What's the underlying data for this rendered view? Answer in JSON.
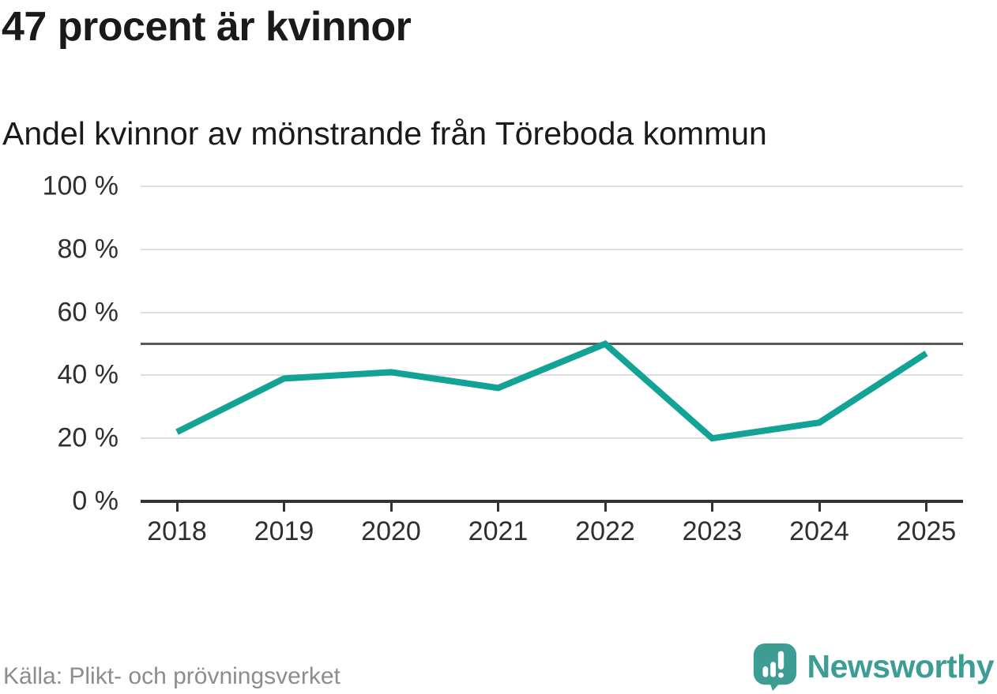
{
  "chart_data": {
    "type": "line",
    "title": "47 procent är kvinnor",
    "subtitle": "Andel kvinnor av mönstrande från Töreboda kommun",
    "categories": [
      "2018",
      "2019",
      "2020",
      "2021",
      "2022",
      "2023",
      "2024",
      "2025"
    ],
    "series": [
      {
        "name": "Andel kvinnor av mönstrande",
        "values": [
          22,
          39,
          41,
          36,
          50,
          20,
          25,
          47
        ]
      }
    ],
    "unit": "%",
    "ylim": [
      0,
      100
    ],
    "yticks": [
      0,
      20,
      40,
      60,
      80,
      100
    ],
    "ytick_labels": [
      "0 %",
      "20 %",
      "40 %",
      "60 %",
      "80 %",
      "100 %"
    ],
    "reference_line_y": 50,
    "grid": "horizontal",
    "legend": "none",
    "line_color": "#12a296"
  },
  "footer": {
    "source": "Källa: Plikt- och prövningsverket",
    "logo_text": "Newsworthy",
    "logo_icon": "newsworthy-bubble-bar-chart-icon"
  },
  "colors": {
    "accent_teal": "#12a296",
    "logo_teal": "#3d9c94",
    "reference_line": "#595959",
    "gridline": "#dedede",
    "axis": "#333333",
    "title_text": "#1a1a1a",
    "axis_text": "#2f2f2f",
    "source_text": "#8c8c8c"
  }
}
